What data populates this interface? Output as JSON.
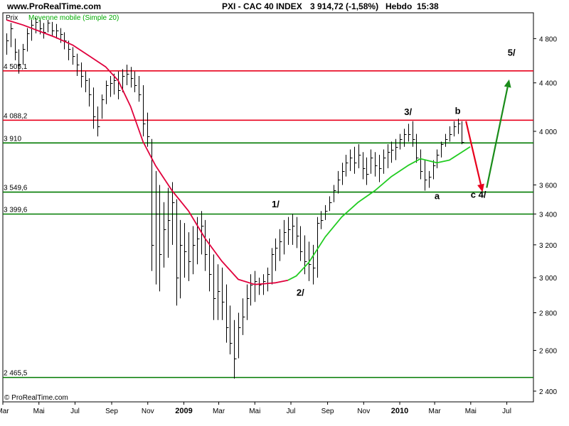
{
  "site": "www.ProRealTime.com",
  "header": {
    "instrument": "PXI - CAC 40 INDEX",
    "price": "3 914,72 (-1,58%)",
    "period": "Hebdo",
    "time": "15:38"
  },
  "legend": {
    "prix": "Prix",
    "moving_average": "Moyenne mobile (Simple 20)"
  },
  "copyright": "© ProRealTime.com",
  "colors": {
    "resistance": "#e8001c",
    "support": "#007a00",
    "ma_red": "#e0003c",
    "ma_green": "#22cc22",
    "arrow_down": "#e8001c",
    "arrow_up": "#1a8c1a"
  },
  "chart_data": {
    "type": "line",
    "scale": "log",
    "ylim": [
      2350,
      5050
    ],
    "xlim": [
      "2008-03-01",
      "2010-08-15"
    ],
    "y_ticks": [
      {
        "value": 4800,
        "label": "4 800"
      },
      {
        "value": 4400,
        "label": "4 400"
      },
      {
        "value": 4000,
        "label": "4 000"
      },
      {
        "value": 3600,
        "label": "3 600"
      },
      {
        "value": 3400,
        "label": "3 400"
      },
      {
        "value": 3200,
        "label": "3 200"
      },
      {
        "value": 3000,
        "label": "3 000"
      },
      {
        "value": 2800,
        "label": "2 800"
      },
      {
        "value": 2600,
        "label": "2 600"
      },
      {
        "value": 2400,
        "label": "2 400"
      }
    ],
    "x_ticks": [
      {
        "date": "2008-03-01",
        "label": "Mar",
        "year": false
      },
      {
        "date": "2008-05-01",
        "label": "Mai",
        "year": false
      },
      {
        "date": "2008-07-01",
        "label": "Jul",
        "year": false
      },
      {
        "date": "2008-09-01",
        "label": "Sep",
        "year": false
      },
      {
        "date": "2008-11-01",
        "label": "Nov",
        "year": false
      },
      {
        "date": "2009-01-01",
        "label": "2009",
        "year": true
      },
      {
        "date": "2009-03-01",
        "label": "Mar",
        "year": false
      },
      {
        "date": "2009-05-01",
        "label": "Mai",
        "year": false
      },
      {
        "date": "2009-07-01",
        "label": "Jul",
        "year": false
      },
      {
        "date": "2009-09-01",
        "label": "Sep",
        "year": false
      },
      {
        "date": "2009-11-01",
        "label": "Nov",
        "year": false
      },
      {
        "date": "2010-01-01",
        "label": "2010",
        "year": true
      },
      {
        "date": "2010-03-01",
        "label": "Mar",
        "year": false
      },
      {
        "date": "2010-05-01",
        "label": "Mai",
        "year": false
      },
      {
        "date": "2010-07-01",
        "label": "Jul",
        "year": false
      }
    ],
    "levels": [
      {
        "value": 4505.1,
        "label": "4 505,1",
        "kind": "resistance"
      },
      {
        "value": 4088.2,
        "label": "4 088,2",
        "kind": "resistance"
      },
      {
        "value": 3910,
        "label": "3 910",
        "kind": "support"
      },
      {
        "value": 3549.6,
        "label": "3 549,6",
        "kind": "support"
      },
      {
        "value": 3399.6,
        "label": "3 399,6",
        "kind": "support"
      },
      {
        "value": 2465.5,
        "label": "2 465,5",
        "kind": "support"
      }
    ],
    "price_bars": {
      "start": "2008-03-07",
      "interval_days": 7,
      "bars": [
        [
          4850,
          4650,
          4780
        ],
        [
          4950,
          4720,
          4900
        ],
        [
          4800,
          4600,
          4680
        ],
        [
          4700,
          4480,
          4560
        ],
        [
          4750,
          4560,
          4700
        ],
        [
          4900,
          4680,
          4850
        ],
        [
          4980,
          4780,
          4930
        ],
        [
          5000,
          4850,
          4960
        ],
        [
          4990,
          4840,
          4900
        ],
        [
          4950,
          4800,
          4860
        ],
        [
          4980,
          4860,
          4950
        ],
        [
          4960,
          4820,
          4880
        ],
        [
          4940,
          4800,
          4880
        ],
        [
          4900,
          4760,
          4840
        ],
        [
          4860,
          4700,
          4780
        ],
        [
          4780,
          4600,
          4700
        ],
        [
          4720,
          4560,
          4640
        ],
        [
          4660,
          4460,
          4560
        ],
        [
          4580,
          4360,
          4460
        ],
        [
          4500,
          4320,
          4420
        ],
        [
          4440,
          4200,
          4300
        ],
        [
          4360,
          4020,
          4120
        ],
        [
          4200,
          3960,
          4040
        ],
        [
          4300,
          4100,
          4260
        ],
        [
          4420,
          4220,
          4380
        ],
        [
          4460,
          4280,
          4400
        ],
        [
          4480,
          4300,
          4420
        ],
        [
          4500,
          4260,
          4340
        ],
        [
          4520,
          4320,
          4460
        ],
        [
          4560,
          4380,
          4480
        ],
        [
          4540,
          4360,
          4440
        ],
        [
          4500,
          4320,
          4380
        ],
        [
          4460,
          4240,
          4300
        ],
        [
          4380,
          3960,
          4060
        ],
        [
          4150,
          3880,
          3960
        ],
        [
          3940,
          3040,
          3200
        ],
        [
          3700,
          2960,
          3400
        ],
        [
          3600,
          2920,
          3140
        ],
        [
          3480,
          3060,
          3300
        ],
        [
          3580,
          3120,
          3360
        ],
        [
          3620,
          3200,
          3480
        ],
        [
          3500,
          2840,
          3000
        ],
        [
          3360,
          2880,
          3200
        ],
        [
          3340,
          3000,
          3160
        ],
        [
          3280,
          2980,
          3100
        ],
        [
          3320,
          3020,
          3200
        ],
        [
          3380,
          3080,
          3240
        ],
        [
          3420,
          3140,
          3320
        ],
        [
          3360,
          3040,
          3140
        ],
        [
          3240,
          2920,
          3020
        ],
        [
          3140,
          2760,
          2880
        ],
        [
          3080,
          2760,
          2920
        ],
        [
          3060,
          2760,
          2860
        ],
        [
          2960,
          2640,
          2720
        ],
        [
          2840,
          2580,
          2640
        ],
        [
          2760,
          2460,
          2560
        ],
        [
          2800,
          2560,
          2720
        ],
        [
          2880,
          2680,
          2780
        ],
        [
          2960,
          2760,
          2880
        ],
        [
          3020,
          2840,
          2960
        ],
        [
          3040,
          2860,
          2980
        ],
        [
          3000,
          2900,
          2960
        ],
        [
          3020,
          2900,
          2980
        ],
        [
          3060,
          2920,
          3020
        ],
        [
          3180,
          2960,
          3140
        ],
        [
          3240,
          3040,
          3180
        ],
        [
          3300,
          3100,
          3220
        ],
        [
          3360,
          3140,
          3280
        ],
        [
          3380,
          3200,
          3300
        ],
        [
          3400,
          3200,
          3320
        ],
        [
          3380,
          3180,
          3260
        ],
        [
          3320,
          3100,
          3160
        ],
        [
          3260,
          3020,
          3100
        ],
        [
          3220,
          2980,
          3080
        ],
        [
          3200,
          2960,
          3060
        ],
        [
          3380,
          3000,
          3340
        ],
        [
          3420,
          3300,
          3360
        ],
        [
          3460,
          3360,
          3420
        ],
        [
          3520,
          3420,
          3480
        ],
        [
          3600,
          3480,
          3560
        ],
        [
          3700,
          3540,
          3640
        ],
        [
          3760,
          3600,
          3700
        ],
        [
          3820,
          3660,
          3760
        ],
        [
          3860,
          3700,
          3800
        ],
        [
          3880,
          3680,
          3760
        ],
        [
          3900,
          3720,
          3820
        ],
        [
          3840,
          3640,
          3720
        ],
        [
          3800,
          3600,
          3680
        ],
        [
          3860,
          3680,
          3800
        ],
        [
          3840,
          3660,
          3740
        ],
        [
          3820,
          3620,
          3720
        ],
        [
          3860,
          3680,
          3800
        ],
        [
          3900,
          3720,
          3840
        ],
        [
          3920,
          3760,
          3860
        ],
        [
          3940,
          3780,
          3880
        ],
        [
          3980,
          3860,
          3940
        ],
        [
          4020,
          3880,
          3980
        ],
        [
          4060,
          3920,
          3980
        ],
        [
          4080,
          3880,
          3940
        ],
        [
          3980,
          3760,
          3800
        ],
        [
          3860,
          3640,
          3700
        ],
        [
          3780,
          3560,
          3640
        ],
        [
          3700,
          3580,
          3660
        ],
        [
          3780,
          3640,
          3740
        ],
        [
          3860,
          3720,
          3820
        ],
        [
          3920,
          3800,
          3900
        ],
        [
          3980,
          3880,
          3940
        ],
        [
          4040,
          3920,
          3980
        ],
        [
          4080,
          3960,
          4040
        ],
        [
          4100,
          3980,
          4060
        ],
        [
          4080,
          3900,
          3915
        ]
      ]
    },
    "series": [
      {
        "name": "Moyenne mobile (Simple 20)",
        "points": [
          [
            "2008-03-07",
            4980
          ],
          [
            "2008-04-04",
            4930
          ],
          [
            "2008-05-02",
            4870
          ],
          [
            "2008-05-30",
            4810
          ],
          [
            "2008-06-27",
            4740
          ],
          [
            "2008-07-25",
            4640
          ],
          [
            "2008-08-22",
            4540
          ],
          [
            "2008-09-12",
            4420
          ],
          [
            "2008-10-03",
            4200
          ],
          [
            "2008-10-24",
            3920
          ],
          [
            "2008-11-14",
            3740
          ],
          [
            "2008-12-12",
            3560
          ],
          [
            "2009-01-09",
            3420
          ],
          [
            "2009-02-06",
            3240
          ],
          [
            "2009-03-06",
            3100
          ],
          [
            "2009-04-03",
            2990
          ],
          [
            "2009-05-01",
            2960
          ],
          [
            "2009-06-05",
            2970
          ],
          [
            "2009-06-26",
            2985
          ]
        ],
        "color_role": "ma_red"
      },
      {
        "name": "Moyenne mobile (Simple 20)",
        "points": [
          [
            "2009-06-26",
            2985
          ],
          [
            "2009-07-10",
            3010
          ],
          [
            "2009-07-31",
            3090
          ],
          [
            "2009-08-28",
            3250
          ],
          [
            "2009-09-25",
            3380
          ],
          [
            "2009-10-23",
            3480
          ],
          [
            "2009-11-20",
            3560
          ],
          [
            "2009-12-18",
            3660
          ],
          [
            "2010-01-15",
            3740
          ],
          [
            "2010-02-05",
            3790
          ],
          [
            "2010-03-05",
            3760
          ],
          [
            "2010-03-26",
            3780
          ],
          [
            "2010-04-16",
            3840
          ],
          [
            "2010-04-30",
            3880
          ]
        ],
        "color_role": "ma_green"
      }
    ],
    "arrows": [
      {
        "from": [
          "2010-04-23",
          4080
        ],
        "to": [
          "2010-05-21",
          3550
        ],
        "color_role": "arrow_down"
      },
      {
        "from": [
          "2010-05-28",
          3580
        ],
        "to": [
          "2010-07-05",
          4430
        ],
        "color_role": "arrow_up"
      }
    ],
    "annotations": [
      {
        "text": "1/",
        "date": "2009-06-05",
        "value": 3445
      },
      {
        "text": "2/",
        "date": "2009-07-17",
        "value": 2895
      },
      {
        "text": "3/",
        "date": "2010-01-15",
        "value": 4130
      },
      {
        "text": "a",
        "date": "2010-03-05",
        "value": 3500
      },
      {
        "text": "b",
        "date": "2010-04-09",
        "value": 4140
      },
      {
        "text": "c 4/",
        "date": "2010-05-14",
        "value": 3510
      },
      {
        "text": "5/",
        "date": "2010-07-09",
        "value": 4640
      }
    ]
  }
}
